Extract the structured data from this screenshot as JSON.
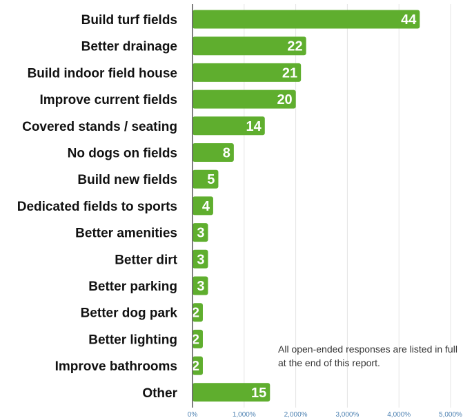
{
  "chart_data": {
    "type": "bar",
    "orientation": "horizontal",
    "categories": [
      "Build turf fields",
      "Better drainage",
      "Build indoor field house",
      "Improve current fields",
      "Covered stands / seating",
      "No dogs on fields",
      "Build new fields",
      "Dedicated fields to sports",
      "Better amenities",
      "Better dirt",
      "Better parking",
      "Better dog park",
      "Better lighting",
      "Improve bathrooms",
      "Other"
    ],
    "values": [
      44,
      22,
      21,
      20,
      14,
      8,
      5,
      4,
      3,
      3,
      3,
      2,
      2,
      2,
      15
    ],
    "x_ticks": [
      "0%",
      "1,000%",
      "2,000%",
      "3,000%",
      "4,000%",
      "5,000%"
    ],
    "xlim": [
      0,
      5000
    ],
    "grid": true,
    "title": "",
    "xlabel": "",
    "ylabel": "",
    "bar_color": "#5fae2e",
    "tick_color": "#4a7fb0",
    "annotation": "All open-ended responses are listed in full at the end of this report."
  }
}
